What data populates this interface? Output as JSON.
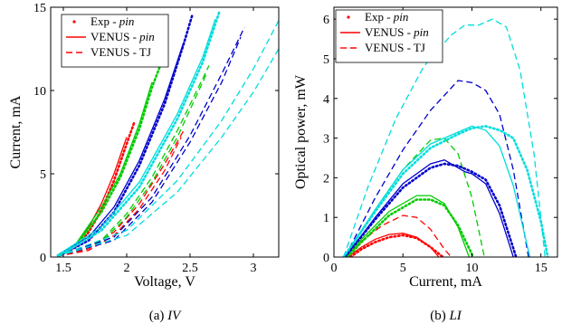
{
  "chart_data": [
    {
      "type": "line",
      "xlabel": "Voltage, V",
      "ylabel": "Current, mA",
      "caption_prefix": "(a) ",
      "caption_italic": "IV",
      "xlim": [
        1.4,
        3.2
      ],
      "ylim": [
        0,
        15
      ],
      "xticks": [
        "1.5",
        "2",
        "2.5",
        "3"
      ],
      "xtick_values": [
        1.5,
        2,
        2.5,
        3
      ],
      "yticks": [
        "0",
        "5",
        "10",
        "15"
      ],
      "ytick_values": [
        0,
        5,
        10,
        15
      ],
      "grid": false,
      "legend_position": "top-left",
      "legend": [
        {
          "label": "Exp - ",
          "label_italic": "pin",
          "style": "dotted"
        },
        {
          "label": "VENUS - ",
          "label_italic": "pin",
          "style": "solid"
        },
        {
          "label": "VENUS - TJ",
          "label_italic": "",
          "style": "dashed"
        }
      ],
      "series": [
        {
          "color": "#ff0000",
          "style": "solid",
          "x": [
            1.45,
            1.6,
            1.7,
            1.8,
            1.9,
            2.0
          ],
          "y": [
            0.1,
            0.8,
            1.8,
            3.2,
            5.0,
            7.2
          ]
        },
        {
          "color": "#ff0000",
          "style": "dotted",
          "x": [
            1.47,
            1.6,
            1.7,
            1.8,
            1.9,
            2.0,
            2.06
          ],
          "y": [
            0.1,
            0.6,
            1.5,
            2.8,
            4.6,
            6.8,
            8.1
          ]
        },
        {
          "color": "#ff0000",
          "style": "dashed",
          "x": [
            1.45,
            1.7,
            1.9,
            2.1,
            2.3,
            2.45
          ],
          "y": [
            0.05,
            0.5,
            1.5,
            3.2,
            5.6,
            7.6
          ]
        },
        {
          "color": "#ff0000",
          "style": "dashed",
          "x": [
            1.45,
            1.7,
            1.9,
            2.1,
            2.3,
            2.43
          ],
          "y": [
            0.05,
            0.4,
            1.3,
            2.9,
            5.2,
            7.2
          ]
        },
        {
          "color": "#00cc00",
          "style": "solid",
          "x": [
            1.45,
            1.6,
            1.8,
            1.95,
            2.1,
            2.2
          ],
          "y": [
            0.1,
            0.8,
            3.0,
            5.0,
            8.0,
            10.5
          ]
        },
        {
          "color": "#00cc00",
          "style": "dotted",
          "x": [
            1.47,
            1.6,
            1.8,
            1.95,
            2.1,
            2.2,
            2.28
          ],
          "y": [
            0.1,
            0.7,
            2.7,
            4.8,
            7.7,
            10.2,
            11.8
          ]
        },
        {
          "color": "#00cc00",
          "style": "dashed",
          "x": [
            1.45,
            1.8,
            2.0,
            2.2,
            2.4,
            2.65
          ],
          "y": [
            0.05,
            1.0,
            2.6,
            4.8,
            7.6,
            11.5
          ]
        },
        {
          "color": "#00cc00",
          "style": "dashed",
          "x": [
            1.45,
            1.8,
            2.0,
            2.2,
            2.4,
            2.63
          ],
          "y": [
            0.05,
            0.9,
            2.4,
            4.5,
            7.2,
            11.0
          ]
        },
        {
          "color": "#0000cc",
          "style": "solid",
          "x": [
            1.45,
            1.7,
            1.9,
            2.1,
            2.3,
            2.45
          ],
          "y": [
            0.1,
            1.2,
            3.0,
            5.8,
            9.5,
            12.9
          ]
        },
        {
          "color": "#0000cc",
          "style": "dotted",
          "x": [
            1.47,
            1.7,
            1.9,
            2.1,
            2.3,
            2.45,
            2.52
          ],
          "y": [
            0.1,
            1.0,
            2.7,
            5.5,
            9.2,
            12.8,
            14.6
          ]
        },
        {
          "color": "#0000cc",
          "style": "dashed",
          "x": [
            1.45,
            1.9,
            2.2,
            2.5,
            2.75,
            2.93
          ],
          "y": [
            0.05,
            1.2,
            3.6,
            7.3,
            11.0,
            13.8
          ]
        },
        {
          "color": "#0000cc",
          "style": "dashed",
          "x": [
            1.45,
            1.9,
            2.2,
            2.5,
            2.75,
            2.9
          ],
          "y": [
            0.05,
            1.0,
            3.3,
            6.9,
            10.5,
            13.2
          ]
        },
        {
          "color": "#00dddd",
          "style": "solid",
          "x": [
            1.45,
            1.8,
            2.1,
            2.4,
            2.6,
            2.7
          ],
          "y": [
            0.1,
            1.8,
            4.5,
            8.6,
            12.0,
            14.3
          ]
        },
        {
          "color": "#00dddd",
          "style": "dotted",
          "x": [
            1.47,
            1.8,
            2.1,
            2.4,
            2.6,
            2.73
          ],
          "y": [
            0.1,
            1.6,
            4.2,
            8.3,
            11.7,
            14.7
          ]
        },
        {
          "color": "#00dddd",
          "style": "dashed",
          "x": [
            1.45,
            2.0,
            2.4,
            2.75,
            3.0,
            3.2
          ],
          "y": [
            0.05,
            1.6,
            4.6,
            8.2,
            11.3,
            14.2
          ]
        },
        {
          "color": "#00dddd",
          "style": "dashed",
          "x": [
            1.45,
            2.0,
            2.4,
            2.75,
            3.0,
            3.2
          ],
          "y": [
            0.05,
            1.3,
            3.9,
            7.2,
            9.9,
            12.5
          ]
        }
      ]
    },
    {
      "type": "line",
      "xlabel": "Current, mA",
      "ylabel": "Optical power, mW",
      "caption_prefix": "(b) ",
      "caption_italic": "LI",
      "xlim": [
        0,
        16.2
      ],
      "ylim": [
        0,
        6.3
      ],
      "xticks": [
        "0",
        "5",
        "10",
        "15"
      ],
      "xtick_values": [
        0,
        5,
        10,
        15
      ],
      "yticks": [
        "0",
        "1",
        "2",
        "3",
        "4",
        "5",
        "6"
      ],
      "ytick_values": [
        0,
        1,
        2,
        3,
        4,
        5,
        6
      ],
      "grid": false,
      "legend_position": "top-left",
      "legend": [
        {
          "label": "Exp - ",
          "label_italic": "pin",
          "style": "dotted"
        },
        {
          "label": "VENUS - ",
          "label_italic": "pin",
          "style": "solid"
        },
        {
          "label": "VENUS - TJ",
          "label_italic": "",
          "style": "dashed"
        }
      ],
      "series": [
        {
          "color": "#ff0000",
          "style": "solid",
          "x": [
            1.0,
            2.0,
            3.0,
            4.0,
            5.0,
            6.0,
            7.0,
            7.6
          ],
          "y": [
            0.0,
            0.25,
            0.45,
            0.57,
            0.6,
            0.5,
            0.25,
            0.0
          ]
        },
        {
          "color": "#ff0000",
          "style": "dotted",
          "x": [
            1.2,
            2.0,
            3.0,
            4.0,
            5.0,
            6.0,
            7.0,
            7.9
          ],
          "y": [
            0.0,
            0.2,
            0.38,
            0.5,
            0.55,
            0.48,
            0.25,
            0.0
          ]
        },
        {
          "color": "#ff0000",
          "style": "dashed",
          "x": [
            0.9,
            2.0,
            3.5,
            5.0,
            6.0,
            7.0,
            8.0,
            8.5
          ],
          "y": [
            0.0,
            0.4,
            0.8,
            1.05,
            1.0,
            0.7,
            0.2,
            0.0
          ]
        },
        {
          "color": "#00cc00",
          "style": "solid",
          "x": [
            0.9,
            2.0,
            4.0,
            6.0,
            7.0,
            8.0,
            9.0,
            9.8
          ],
          "y": [
            0.0,
            0.45,
            1.15,
            1.55,
            1.55,
            1.35,
            0.75,
            0.0
          ]
        },
        {
          "color": "#00cc00",
          "style": "dotted",
          "x": [
            1.0,
            2.0,
            4.0,
            6.0,
            7.0,
            8.0,
            9.0,
            10.1
          ],
          "y": [
            0.0,
            0.38,
            1.05,
            1.45,
            1.45,
            1.3,
            0.8,
            0.0
          ]
        },
        {
          "color": "#00cc00",
          "style": "dashed",
          "x": [
            0.8,
            3.0,
            5.0,
            7.0,
            8.0,
            9.0,
            10.0,
            10.9
          ],
          "y": [
            0.0,
            1.2,
            2.2,
            2.95,
            3.0,
            2.6,
            1.5,
            0.0
          ]
        },
        {
          "color": "#0000cc",
          "style": "solid",
          "x": [
            0.8,
            3.0,
            5.0,
            7.0,
            8.0,
            9.5,
            10.0,
            11.0,
            12.0,
            13.0
          ],
          "y": [
            0.0,
            1.0,
            1.85,
            2.35,
            2.45,
            2.15,
            2.1,
            1.85,
            1.1,
            0.0
          ]
        },
        {
          "color": "#0000cc",
          "style": "dotted",
          "x": [
            0.8,
            3.0,
            5.0,
            7.0,
            8.0,
            9.0,
            10.0,
            11.0,
            12.0,
            13.2
          ],
          "y": [
            0.0,
            0.95,
            1.75,
            2.25,
            2.35,
            2.3,
            2.15,
            1.95,
            1.3,
            0.0
          ]
        },
        {
          "color": "#0000cc",
          "style": "dashed",
          "x": [
            0.8,
            3.0,
            5.0,
            7.0,
            9.0,
            10.0,
            11.0,
            12.0,
            13.0,
            14.1
          ],
          "y": [
            0.0,
            1.5,
            2.7,
            3.7,
            4.45,
            4.4,
            4.2,
            3.6,
            2.2,
            0.0
          ]
        },
        {
          "color": "#00dddd",
          "style": "solid",
          "x": [
            0.7,
            3.0,
            5.0,
            7.0,
            9.0,
            10.0,
            11.0,
            12.0,
            13.0,
            14.2
          ],
          "y": [
            0.0,
            1.2,
            2.2,
            2.85,
            3.15,
            3.3,
            3.2,
            2.8,
            1.8,
            0.0
          ]
        },
        {
          "color": "#00dddd",
          "style": "dotted",
          "x": [
            0.7,
            3.0,
            5.0,
            7.0,
            9.0,
            10.0,
            11.0,
            12.0,
            13.0,
            14.0,
            15.0,
            15.5
          ],
          "y": [
            0.0,
            1.15,
            2.1,
            2.75,
            3.1,
            3.25,
            3.3,
            3.2,
            3.0,
            2.2,
            0.9,
            0.0
          ]
        },
        {
          "color": "#00dddd",
          "style": "dashed",
          "x": [
            0.7,
            2.5,
            4.5,
            6.5,
            8.5,
            9.5,
            10.5,
            11.5,
            12.5,
            13.5,
            14.5,
            15.3
          ],
          "y": [
            0.0,
            1.8,
            3.5,
            4.8,
            5.6,
            5.85,
            5.85,
            6.0,
            5.8,
            4.7,
            2.6,
            0.0
          ]
        }
      ]
    }
  ]
}
